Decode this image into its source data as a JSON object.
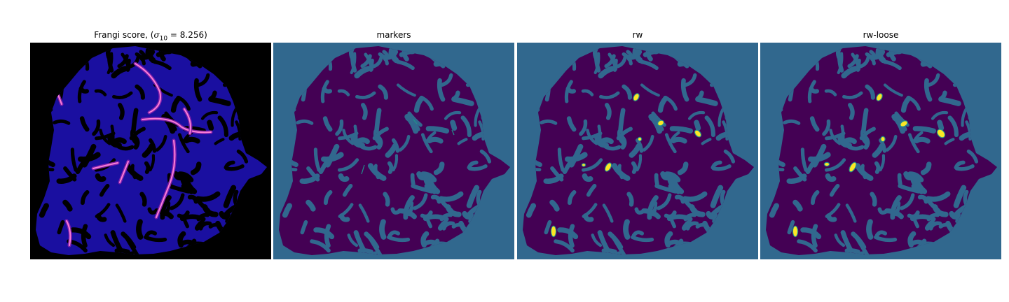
{
  "figure": {
    "panels": [
      {
        "title_prefix": "Frangi score, (",
        "title_symbol": "σ",
        "title_subscript": "10",
        "title_suffix": " = 8.256)",
        "colormap": "magma",
        "background_color": "#000000",
        "vessel_color": "#1a0fa0",
        "highlight_color": "#f97fd6"
      },
      {
        "title": "markers",
        "colormap": "viridis",
        "background_color": "#31688e",
        "region_color": "#440154",
        "line_color": "#21918c"
      },
      {
        "title": "rw",
        "colormap": "viridis",
        "background_color": "#31688e",
        "region_color": "#440154",
        "marker_color": "#fde725"
      },
      {
        "title": "rw-loose",
        "colormap": "viridis",
        "background_color": "#31688e",
        "region_color": "#440154",
        "marker_color": "#fde725"
      }
    ]
  }
}
